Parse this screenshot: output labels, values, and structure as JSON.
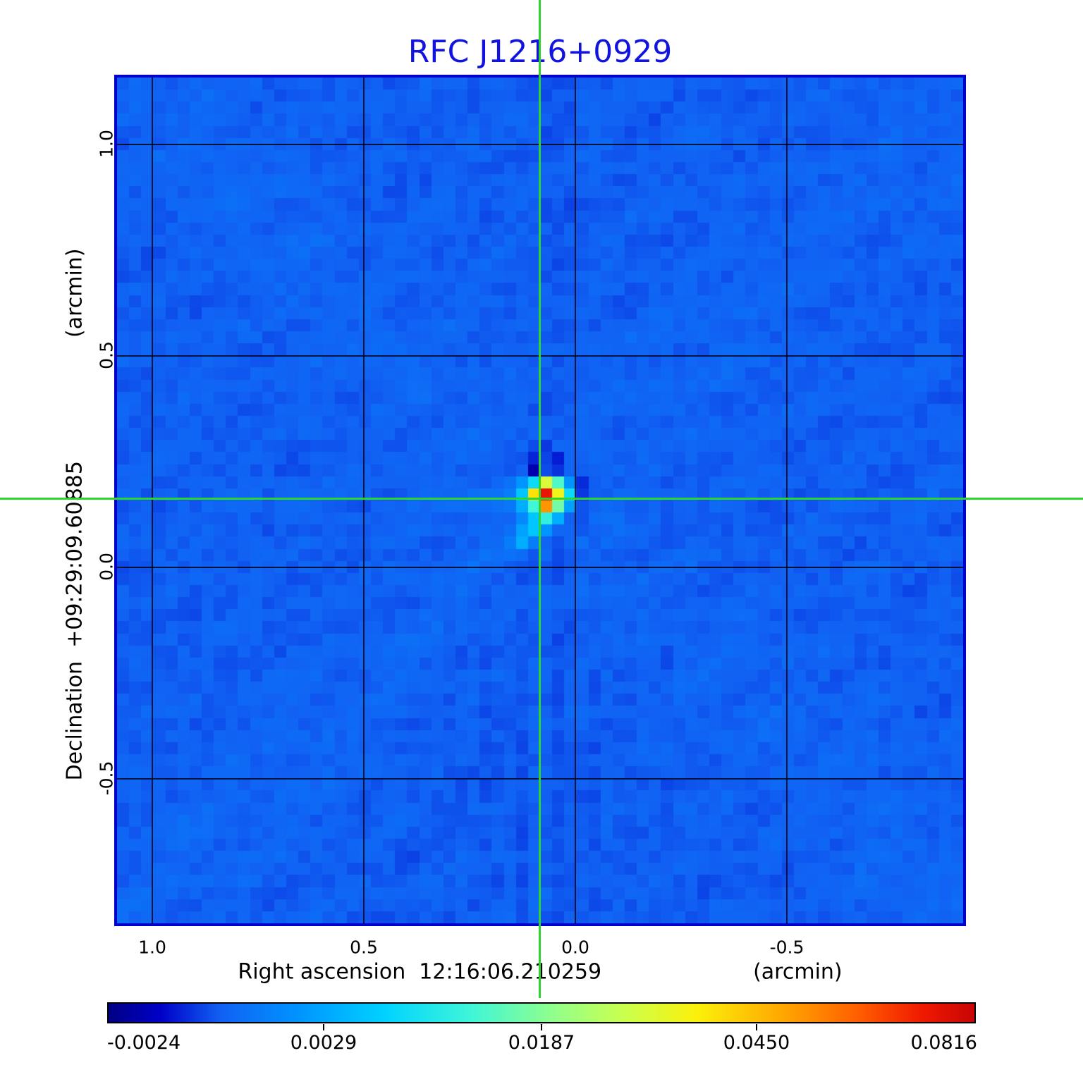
{
  "title": {
    "text": "RFC J1216+0929",
    "color": "#1113e0"
  },
  "y_axis": {
    "label": "Declination  +09:29:09.60885",
    "unit": "(arcmin)",
    "ticks": [
      "1.0",
      "0.5",
      "0.0",
      "-0.5"
    ]
  },
  "x_axis": {
    "label": "Right ascension  12:16:06.210259",
    "unit": "(arcmin)",
    "ticks": [
      "1.0",
      "0.5",
      "0.0",
      "-0.5"
    ]
  },
  "colorbar": {
    "tick_labels": [
      "-0.0024",
      "0.0029",
      "0.0187",
      "0.0450",
      "0.0816"
    ]
  },
  "crosshair": {
    "color": "#2dd62d"
  },
  "chart_data": {
    "type": "heatmap",
    "title": "RFC J1216+0929",
    "xlabel": "Right ascension  12:16:06.210259 (arcmin)",
    "ylabel": "Declination  +09:29:09.60885 (arcmin)",
    "x_ticks_arcmin": [
      1.0,
      0.5,
      0.0,
      -0.5
    ],
    "y_ticks_arcmin": [
      1.0,
      0.5,
      0.0,
      -0.5
    ],
    "x_range_arcmin": [
      1.085,
      -0.915
    ],
    "y_range_arcmin": [
      1.16,
      -0.84
    ],
    "colorbar_values": [
      -0.0024,
      0.0029,
      0.0187,
      0.045,
      0.0816
    ],
    "colorbar_fractions": [
      0.0,
      0.25,
      0.5,
      0.748,
      1.0
    ],
    "peak_value": 0.0816,
    "peak_offset_arcmin": {
      "ra": 0.085,
      "dec": 0.16
    },
    "grid_cells": 70,
    "background_level": 0.13,
    "source_cell": {
      "col": 35,
      "row": 34
    },
    "colormap_stops": [
      [
        0.0,
        [
          0,
          0,
          132
        ]
      ],
      [
        0.06,
        [
          0,
          0,
          200
        ]
      ],
      [
        0.13,
        [
          17,
          97,
          243
        ]
      ],
      [
        0.22,
        [
          0,
          148,
          255
        ]
      ],
      [
        0.32,
        [
          0,
          211,
          255
        ]
      ],
      [
        0.42,
        [
          64,
          246,
          215
        ]
      ],
      [
        0.52,
        [
          150,
          255,
          135
        ]
      ],
      [
        0.6,
        [
          205,
          255,
          75
        ]
      ],
      [
        0.68,
        [
          252,
          240,
          10
        ]
      ],
      [
        0.78,
        [
          255,
          166,
          0
        ]
      ],
      [
        0.87,
        [
          255,
          90,
          0
        ]
      ],
      [
        0.94,
        [
          240,
          25,
          0
        ]
      ],
      [
        1.0,
        [
          200,
          5,
          5
        ]
      ]
    ],
    "source_matrix": [
      [
        null,
        null,
        null,
        null,
        null,
        null,
        null,
        null,
        null,
        null,
        null
      ],
      [
        null,
        null,
        null,
        null,
        0.115,
        0.1,
        null,
        null,
        null,
        null,
        null
      ],
      [
        null,
        null,
        null,
        0.12,
        0.085,
        0.11,
        0.08,
        null,
        null,
        null,
        null
      ],
      [
        null,
        null,
        null,
        0.13,
        0.035,
        0.115,
        0.095,
        null,
        null,
        null,
        null
      ],
      [
        null,
        null,
        0.16,
        0.22,
        0.34,
        0.62,
        0.44,
        0.22,
        0.09,
        null,
        null
      ],
      [
        null,
        0.16,
        0.18,
        0.3,
        0.7,
        0.95,
        0.66,
        0.34,
        0.1,
        null,
        null
      ],
      [
        null,
        null,
        0.17,
        0.26,
        0.42,
        0.8,
        0.48,
        0.24,
        0.12,
        null,
        null
      ],
      [
        null,
        null,
        null,
        0.2,
        0.3,
        0.4,
        0.26,
        0.13,
        null,
        null,
        null
      ],
      [
        null,
        null,
        null,
        0.24,
        0.3,
        0.22,
        0.14,
        null,
        null,
        null,
        null
      ],
      [
        null,
        null,
        0.18,
        0.26,
        0.18,
        null,
        null,
        null,
        null,
        null,
        null
      ],
      [
        null,
        null,
        0.16,
        0.15,
        null,
        null,
        null,
        null,
        null,
        null,
        null
      ]
    ]
  }
}
